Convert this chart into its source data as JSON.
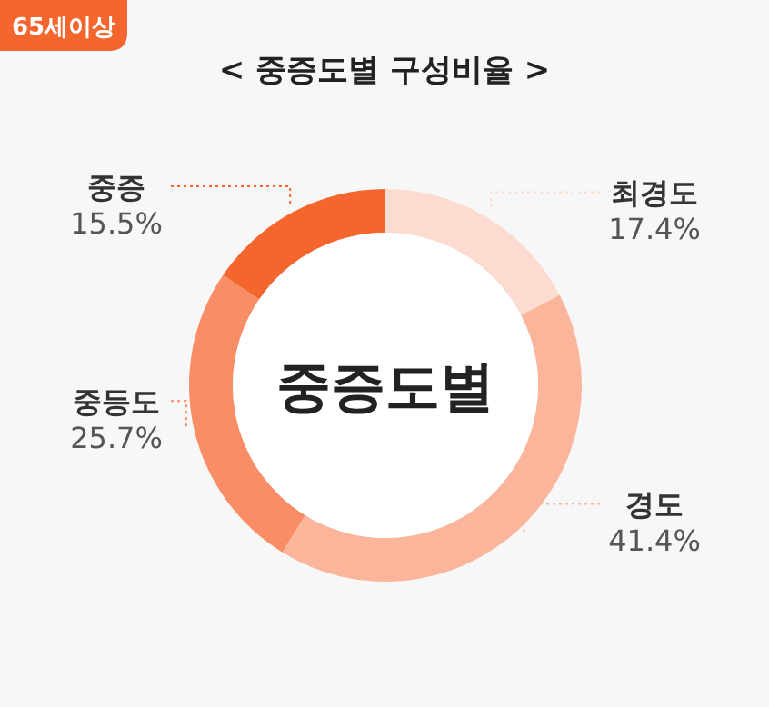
{
  "chart_data": {
    "type": "donut",
    "title": "< 중증도별 구성비율 >",
    "subtitle": "65세이상",
    "categories": [
      "최경도",
      "경도",
      "중등도",
      "중증"
    ],
    "values": [
      17.4,
      41.4,
      25.7,
      15.5
    ],
    "value_labels": [
      "17.4%",
      "41.4%",
      "25.7%",
      "15.5%"
    ],
    "colors": [
      "#fcdcd0",
      "#fbb59b",
      "#f98e66",
      "#f4662d"
    ],
    "annotations": [
      "중증도별"
    ]
  }
}
